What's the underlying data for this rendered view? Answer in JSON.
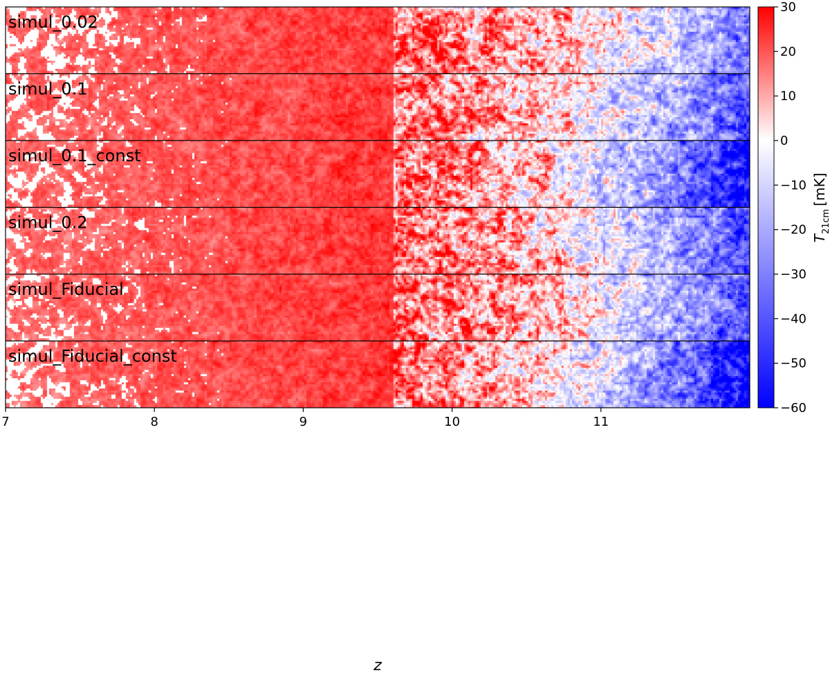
{
  "chart_data": {
    "type": "heatmap",
    "xlabel": "z",
    "xlim": [
      7,
      12
    ],
    "x_ticks": [
      "7",
      "8",
      "9",
      "10",
      "11"
    ],
    "panels": [
      {
        "label": "simul_0.02"
      },
      {
        "label": "simul_0.1"
      },
      {
        "label": "simul_0.1_const"
      },
      {
        "label": "simul_0.2"
      },
      {
        "label": "simul_Fiducial"
      },
      {
        "label": "simul_Fiducial_const"
      }
    ],
    "colorbar": {
      "label_main": "T",
      "label_sub": "21cm",
      "label_unit": "[mK]",
      "range": [
        -60,
        30
      ],
      "ticks": [
        "30",
        "20",
        "10",
        "0",
        "−10",
        "−20",
        "−30",
        "−40",
        "−50",
        "−60"
      ],
      "colormap": "bwr",
      "color_low": "#0000ff",
      "color_mid": "#ffffff",
      "color_high": "#ff0000"
    }
  }
}
